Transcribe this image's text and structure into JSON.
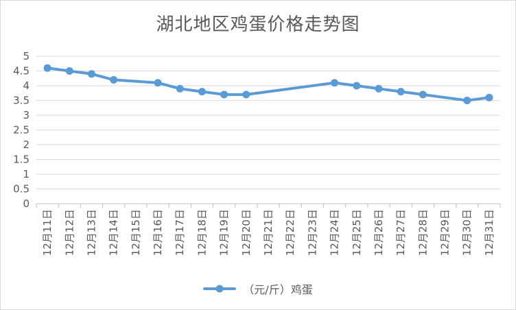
{
  "chart_data": {
    "type": "line",
    "title": "湖北地区鸡蛋价格走势图",
    "xlabel": "",
    "ylabel": "",
    "categories": [
      "12月11日",
      "12月12日",
      "12月13日",
      "12月14日",
      "12月15日",
      "12月16日",
      "12月17日",
      "12月18日",
      "12月19日",
      "12月20日",
      "12月21日",
      "12月22日",
      "12月23日",
      "12月24日",
      "12月25日",
      "12月26日",
      "12月27日",
      "12月28日",
      "12月29日",
      "12月30日",
      "12月31日"
    ],
    "y_ticks": [
      "0",
      "0.5",
      "1",
      "1.5",
      "2",
      "2.5",
      "3",
      "3.5",
      "4",
      "4.5",
      "5"
    ],
    "ylim": [
      0,
      5
    ],
    "grid": true,
    "legend_position": "bottom",
    "series": [
      {
        "name": "（元/斤）鸡蛋",
        "color": "#5b9bd5",
        "values": [
          4.6,
          4.5,
          4.4,
          4.2,
          null,
          4.1,
          3.9,
          3.8,
          3.7,
          3.7,
          null,
          null,
          null,
          4.1,
          4.0,
          3.9,
          3.8,
          3.7,
          null,
          3.5,
          3.6
        ]
      }
    ]
  }
}
